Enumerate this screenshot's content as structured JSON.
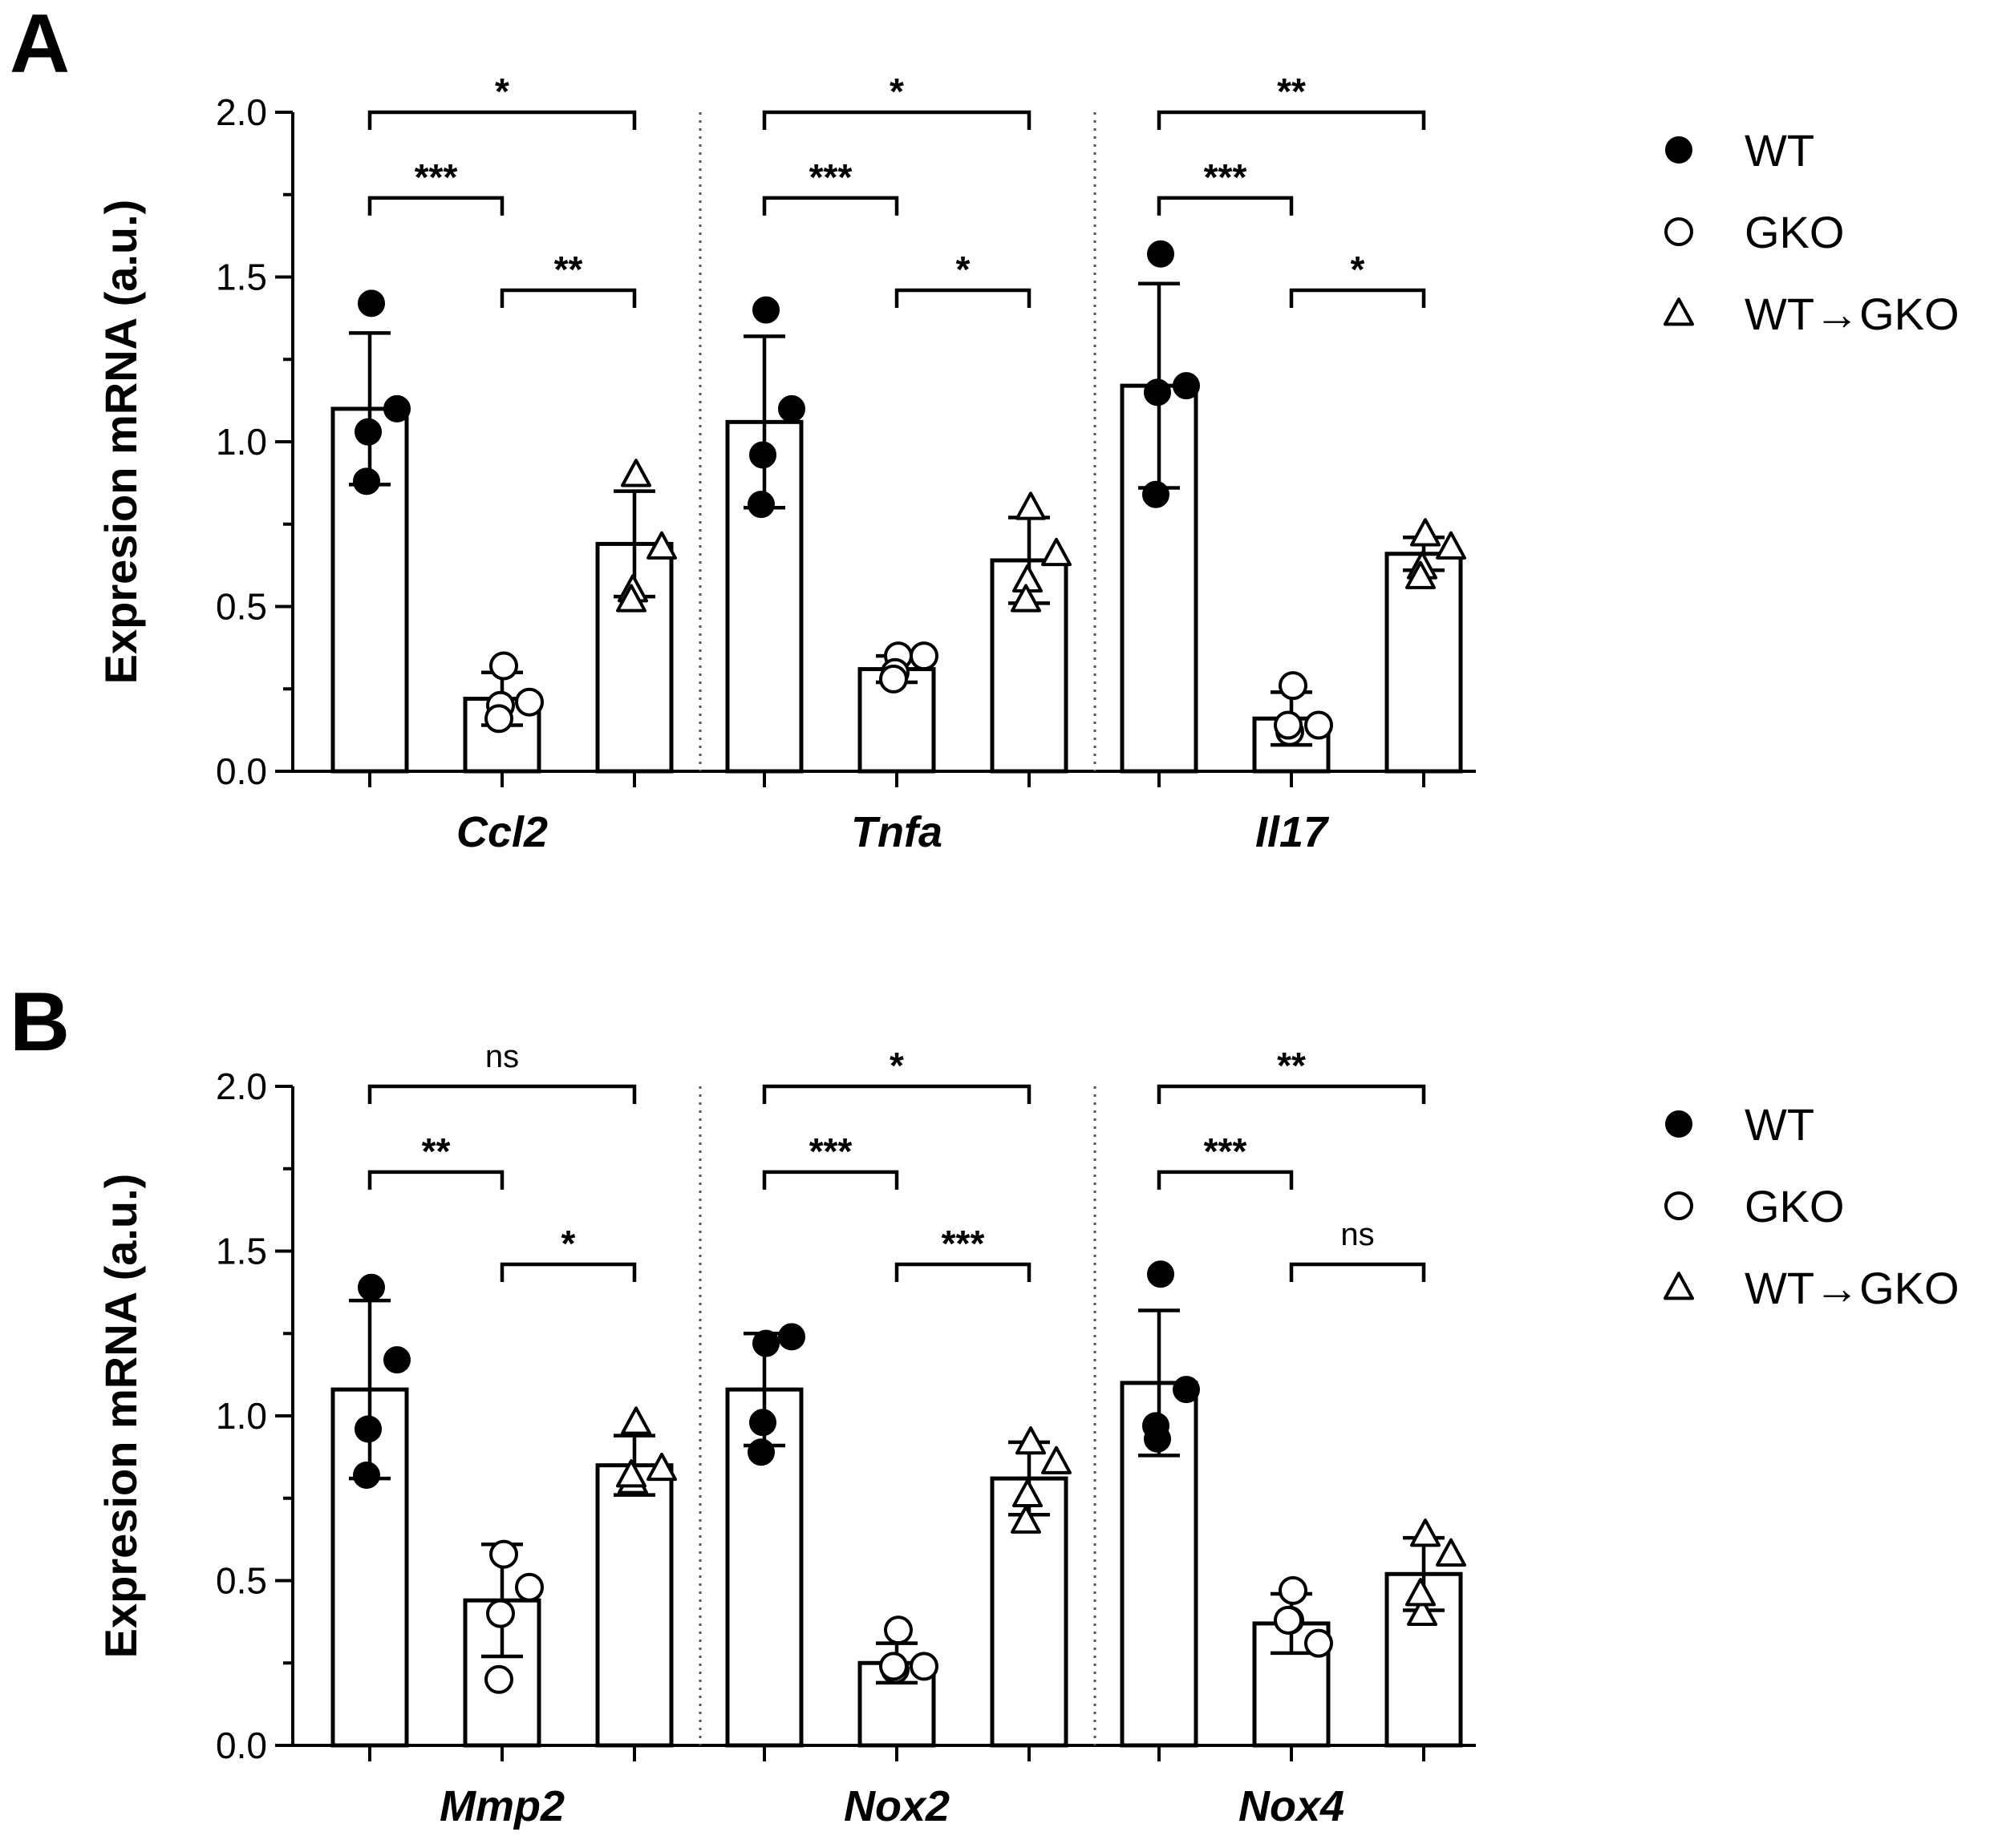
{
  "legend": {
    "items": [
      {
        "label": "WT",
        "marker": "filled-circle"
      },
      {
        "label": "GKO",
        "marker": "open-circle"
      },
      {
        "label": "WT→GKO",
        "marker": "open-triangle"
      }
    ]
  },
  "chart_data": [
    {
      "panel": "A",
      "type": "bar",
      "ylabel": "Expresion mRNA (a.u.)",
      "ylim": [
        0,
        2.0
      ],
      "yticks": [
        "0.0",
        "0.5",
        "1.0",
        "1.5",
        "2.0"
      ],
      "grid": false,
      "legend_position": "right",
      "categories": [
        "Ccl2",
        "Tnfa",
        "Il17"
      ],
      "series": [
        {
          "name": "WT",
          "values": [
            1.1,
            1.06,
            1.17
          ],
          "sd": [
            0.23,
            0.26,
            0.31
          ],
          "points": [
            [
              1.42,
              1.1,
              1.03,
              0.88
            ],
            [
              1.4,
              1.1,
              0.96,
              0.81
            ],
            [
              1.57,
              1.17,
              1.15,
              0.84
            ]
          ]
        },
        {
          "name": "GKO",
          "values": [
            0.22,
            0.31,
            0.16
          ],
          "sd": [
            0.08,
            0.04,
            0.08
          ],
          "points": [
            [
              0.32,
              0.21,
              0.2,
              0.16
            ],
            [
              0.35,
              0.35,
              0.3,
              0.28
            ],
            [
              0.26,
              0.14,
              0.12,
              0.14
            ]
          ]
        },
        {
          "name": "WT→GKO",
          "values": [
            0.69,
            0.64,
            0.66
          ],
          "sd": [
            0.16,
            0.13,
            0.05
          ],
          "points": [
            [
              0.9,
              0.68,
              0.55,
              0.52
            ],
            [
              0.8,
              0.66,
              0.58,
              0.52
            ],
            [
              0.72,
              0.68,
              0.62,
              0.59
            ]
          ]
        }
      ],
      "comparisons": [
        {
          "category": "Ccl2",
          "from": 0,
          "to": 2,
          "label": "*",
          "y": 2.0
        },
        {
          "category": "Ccl2",
          "from": 0,
          "to": 1,
          "label": "***",
          "y": 1.74
        },
        {
          "category": "Ccl2",
          "from": 1,
          "to": 2,
          "label": "**",
          "y": 1.46
        },
        {
          "category": "Tnfa",
          "from": 0,
          "to": 2,
          "label": "*",
          "y": 2.0
        },
        {
          "category": "Tnfa",
          "from": 0,
          "to": 1,
          "label": "***",
          "y": 1.74
        },
        {
          "category": "Tnfa",
          "from": 1,
          "to": 2,
          "label": "*",
          "y": 1.46
        },
        {
          "category": "Il17",
          "from": 0,
          "to": 2,
          "label": "**",
          "y": 2.0
        },
        {
          "category": "Il17",
          "from": 0,
          "to": 1,
          "label": "***",
          "y": 1.74
        },
        {
          "category": "Il17",
          "from": 1,
          "to": 2,
          "label": "*",
          "y": 1.46
        }
      ]
    },
    {
      "panel": "B",
      "type": "bar",
      "ylabel": "Expresion mRNA (a.u.)",
      "ylim": [
        0,
        2.0
      ],
      "yticks": [
        "0.0",
        "0.5",
        "1.0",
        "1.5",
        "2.0"
      ],
      "grid": false,
      "legend_position": "right",
      "categories": [
        "Mmp2",
        "Nox2",
        "Nox4"
      ],
      "series": [
        {
          "name": "WT",
          "values": [
            1.08,
            1.08,
            1.1
          ],
          "sd": [
            0.27,
            0.17,
            0.22
          ],
          "points": [
            [
              1.39,
              1.17,
              0.96,
              0.82
            ],
            [
              1.22,
              1.24,
              0.98,
              0.89
            ],
            [
              1.43,
              1.08,
              0.93,
              0.97
            ]
          ]
        },
        {
          "name": "GKO",
          "values": [
            0.44,
            0.25,
            0.37
          ],
          "sd": [
            0.17,
            0.06,
            0.09
          ],
          "points": [
            [
              0.58,
              0.48,
              0.4,
              0.2
            ],
            [
              0.35,
              0.24,
              0.23,
              0.24
            ],
            [
              0.47,
              0.31,
              0.38,
              0.38
            ]
          ]
        },
        {
          "name": "WT→GKO",
          "values": [
            0.85,
            0.81,
            0.52
          ],
          "sd": [
            0.09,
            0.11,
            0.11
          ],
          "points": [
            [
              0.98,
              0.84,
              0.8,
              0.82
            ],
            [
              0.92,
              0.86,
              0.76,
              0.68
            ],
            [
              0.64,
              0.58,
              0.4,
              0.46
            ]
          ]
        }
      ],
      "comparisons": [
        {
          "category": "Mmp2",
          "from": 0,
          "to": 2,
          "label": "ns",
          "y": 2.0
        },
        {
          "category": "Mmp2",
          "from": 0,
          "to": 1,
          "label": "**",
          "y": 1.74
        },
        {
          "category": "Mmp2",
          "from": 1,
          "to": 2,
          "label": "*",
          "y": 1.46
        },
        {
          "category": "Nox2",
          "from": 0,
          "to": 2,
          "label": "*",
          "y": 2.0
        },
        {
          "category": "Nox2",
          "from": 0,
          "to": 1,
          "label": "***",
          "y": 1.74
        },
        {
          "category": "Nox2",
          "from": 1,
          "to": 2,
          "label": "***",
          "y": 1.46
        },
        {
          "category": "Nox4",
          "from": 0,
          "to": 2,
          "label": "**",
          "y": 2.0
        },
        {
          "category": "Nox4",
          "from": 0,
          "to": 1,
          "label": "***",
          "y": 1.74
        },
        {
          "category": "Nox4",
          "from": 1,
          "to": 2,
          "label": "ns",
          "y": 1.46
        }
      ]
    }
  ]
}
